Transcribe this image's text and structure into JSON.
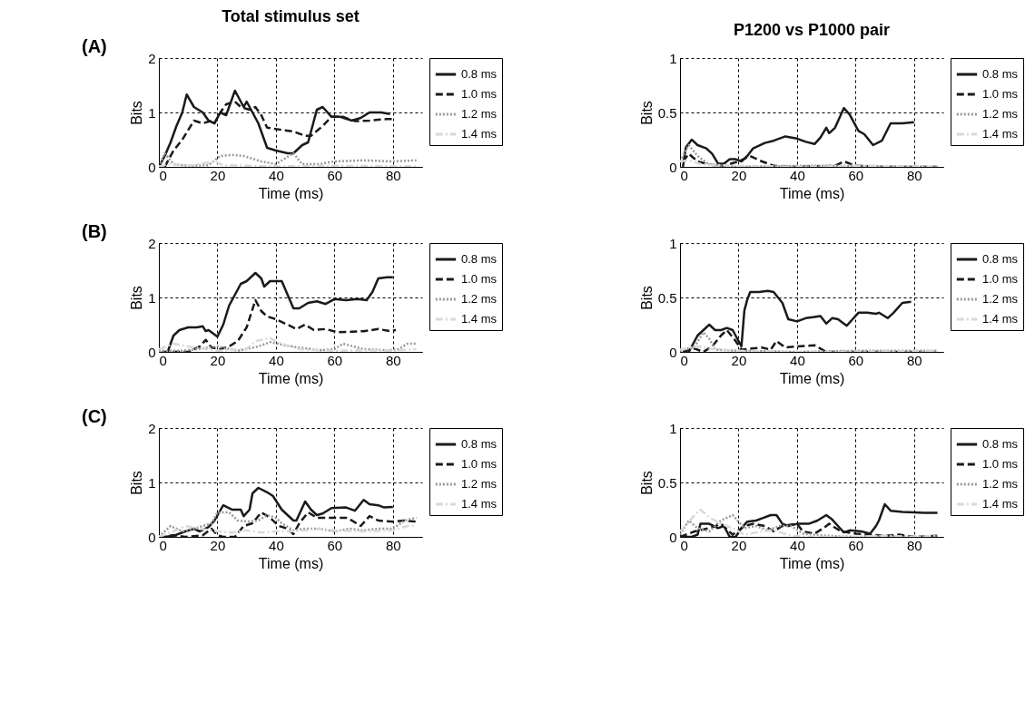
{
  "chart_data": [
    {
      "type": "line",
      "title": "Total stimulus set",
      "annotations": [
        "(A)"
      ],
      "xlabel": "Time (ms)",
      "ylabel": "Bits",
      "xlim": [
        0,
        90
      ],
      "xticks": [
        0,
        20,
        40,
        60,
        80
      ],
      "ylim": [
        0,
        2
      ],
      "yticks": [
        0,
        1,
        2
      ],
      "grid": true,
      "legend": "top right",
      "series": [
        {
          "name": "0.8 ms",
          "color": "#1a1a1a",
          "line_style": "solid",
          "x": [
            0,
            2,
            4,
            6,
            8,
            9.5,
            12,
            15,
            17,
            19,
            21,
            23,
            26,
            29,
            30,
            32,
            34,
            37,
            40,
            44,
            46,
            49,
            51,
            54,
            56,
            59,
            62,
            66,
            69,
            72,
            76,
            79
          ],
          "values": [
            0,
            0.2,
            0.45,
            0.75,
            1.0,
            1.33,
            1.1,
            1.0,
            0.85,
            0.8,
            1.0,
            0.95,
            1.4,
            1.1,
            1.2,
            1.0,
            0.8,
            0.35,
            0.3,
            0.25,
            0.25,
            0.4,
            0.45,
            1.05,
            1.1,
            0.92,
            0.92,
            0.85,
            0.9,
            1.0,
            1.0,
            0.97
          ]
        },
        {
          "name": "1.0 ms",
          "color": "#1a1a1a",
          "line_style": "dashed",
          "x": [
            2,
            5,
            8,
            12,
            15,
            18,
            19,
            21,
            23,
            26,
            28,
            31,
            33,
            35,
            37,
            42,
            46,
            50,
            52,
            56,
            59,
            63,
            67,
            72,
            78,
            80
          ],
          "values": [
            0,
            0.3,
            0.5,
            0.85,
            0.8,
            0.85,
            0.8,
            1.0,
            1.15,
            1.2,
            1.1,
            1.05,
            1.1,
            0.95,
            0.72,
            0.68,
            0.65,
            0.57,
            0.57,
            0.75,
            0.92,
            0.92,
            0.84,
            0.85,
            0.88,
            0.88
          ]
        },
        {
          "name": "1.2 ms",
          "color": "#999999",
          "line_style": "dotted",
          "x": [
            0,
            2,
            5,
            10,
            17,
            21,
            25,
            29,
            35,
            40,
            43,
            46,
            49,
            55,
            60,
            70,
            80,
            88
          ],
          "values": [
            0,
            0.25,
            0.05,
            0.02,
            0.03,
            0.2,
            0.22,
            0.2,
            0.1,
            0.05,
            0.15,
            0.25,
            0.05,
            0.05,
            0.1,
            0.12,
            0.1,
            0.12
          ]
        },
        {
          "name": "1.4 ms",
          "color": "#d9d9d9",
          "line_style": "dashdot",
          "x": [
            0,
            3,
            10,
            19,
            22,
            40,
            60,
            88
          ],
          "values": [
            0,
            0.05,
            0.02,
            0.1,
            0.03,
            0.01,
            0.02,
            0.01
          ]
        }
      ]
    },
    {
      "type": "line",
      "title": "P1200 vs P1000 pair",
      "xlabel": "Time (ms)",
      "ylabel": "Bits",
      "xlim": [
        0,
        90
      ],
      "xticks": [
        0,
        20,
        40,
        60,
        80
      ],
      "ylim": [
        0,
        1
      ],
      "yticks": [
        0,
        0.5,
        1
      ],
      "grid": true,
      "legend": "top right",
      "series": [
        {
          "name": "0.8 ms",
          "color": "#1a1a1a",
          "line_style": "solid",
          "x": [
            1,
            2,
            4,
            6,
            9,
            11,
            13,
            15,
            17,
            19,
            21,
            23,
            25,
            29,
            32,
            36,
            40,
            43,
            46,
            48,
            50,
            51,
            53,
            56,
            58,
            61,
            63,
            66,
            69,
            72,
            76,
            80
          ],
          "values": [
            0,
            0.18,
            0.25,
            0.2,
            0.17,
            0.12,
            0.03,
            0.03,
            0.07,
            0.07,
            0.05,
            0.1,
            0.17,
            0.22,
            0.24,
            0.28,
            0.26,
            0.23,
            0.21,
            0.27,
            0.36,
            0.31,
            0.36,
            0.54,
            0.48,
            0.33,
            0.3,
            0.2,
            0.24,
            0.4,
            0.4,
            0.41
          ]
        },
        {
          "name": "1.0 ms",
          "color": "#1a1a1a",
          "line_style": "dashed",
          "x": [
            1,
            3,
            6,
            10,
            15,
            20,
            24,
            28,
            32,
            40,
            53,
            56,
            60,
            70,
            88
          ],
          "values": [
            0.05,
            0.12,
            0.05,
            0.02,
            0.01,
            0.05,
            0.1,
            0.05,
            0.01,
            0,
            0.01,
            0.05,
            0.01,
            0,
            0
          ]
        },
        {
          "name": "1.2 ms",
          "color": "#999999",
          "line_style": "dotted",
          "x": [
            0,
            3,
            6,
            10,
            20,
            40,
            60,
            88
          ],
          "values": [
            0.05,
            0.2,
            0.1,
            0.02,
            0,
            0.01,
            0.01,
            0
          ]
        },
        {
          "name": "1.4 ms",
          "color": "#d9d9d9",
          "line_style": "dashdot",
          "x": [
            0,
            3,
            8,
            20,
            40,
            60,
            88
          ],
          "values": [
            0.05,
            0.06,
            0.02,
            0.01,
            0,
            0.01,
            0
          ]
        }
      ]
    },
    {
      "type": "line",
      "annotations": [
        "(B)"
      ],
      "xlabel": "Time (ms)",
      "ylabel": "Bits",
      "xlim": [
        0,
        90
      ],
      "xticks": [
        0,
        20,
        40,
        60,
        80
      ],
      "ylim": [
        0,
        2
      ],
      "yticks": [
        0,
        1,
        2
      ],
      "grid": true,
      "legend": "top right",
      "series": [
        {
          "name": "0.8 ms",
          "color": "#1a1a1a",
          "line_style": "solid",
          "x": [
            3,
            5,
            7,
            10,
            13,
            15,
            16,
            17,
            20,
            22,
            24,
            26,
            28,
            30,
            33,
            35,
            36,
            38,
            42,
            44,
            46,
            48,
            51,
            54,
            57,
            60,
            64,
            68,
            71,
            73,
            75,
            78,
            80
          ],
          "values": [
            0,
            0.3,
            0.4,
            0.45,
            0.45,
            0.47,
            0.38,
            0.4,
            0.28,
            0.5,
            0.85,
            1.05,
            1.25,
            1.3,
            1.45,
            1.35,
            1.2,
            1.3,
            1.3,
            1.05,
            0.8,
            0.8,
            0.9,
            0.93,
            0.88,
            0.97,
            0.95,
            0.97,
            0.95,
            1.1,
            1.35,
            1.37,
            1.37
          ]
        },
        {
          "name": "1.0 ms",
          "color": "#1a1a1a",
          "line_style": "dashed",
          "x": [
            1,
            10,
            14,
            16,
            18,
            21,
            24,
            27,
            30,
            33,
            35,
            37,
            40,
            44,
            47,
            50,
            53,
            57,
            61,
            66,
            70,
            75,
            79,
            81
          ],
          "values": [
            0,
            0,
            0.1,
            0.22,
            0.08,
            0.05,
            0.1,
            0.2,
            0.45,
            0.95,
            0.75,
            0.65,
            0.6,
            0.5,
            0.42,
            0.5,
            0.4,
            0.42,
            0.36,
            0.37,
            0.38,
            0.42,
            0.38,
            0.4
          ]
        },
        {
          "name": "1.2 ms",
          "color": "#999999",
          "line_style": "dotted",
          "x": [
            0,
            8,
            13,
            20,
            27,
            34,
            38,
            43,
            48,
            55,
            60,
            63,
            70,
            78,
            82,
            85,
            88
          ],
          "values": [
            0.02,
            0.02,
            0.05,
            0.1,
            0.02,
            0.1,
            0.18,
            0.12,
            0.08,
            0.03,
            0.05,
            0.15,
            0.05,
            0.03,
            0.05,
            0.15,
            0.15
          ]
        },
        {
          "name": "1.4 ms",
          "color": "#d9d9d9",
          "line_style": "dashdot",
          "x": [
            0,
            5,
            10,
            20,
            30,
            33,
            38,
            42,
            48,
            60,
            70,
            80,
            88
          ],
          "values": [
            0.05,
            0.15,
            0.1,
            0.02,
            0.05,
            0.2,
            0.25,
            0.15,
            0.05,
            0.02,
            0.03,
            0.02,
            0.05
          ]
        }
      ]
    },
    {
      "type": "line",
      "xlabel": "Time (ms)",
      "ylabel": "Bits",
      "xlim": [
        0,
        90
      ],
      "xticks": [
        0,
        20,
        40,
        60,
        80
      ],
      "ylim": [
        0,
        1
      ],
      "yticks": [
        0,
        0.5,
        1
      ],
      "grid": true,
      "legend": "top right",
      "series": [
        {
          "name": "0.8 ms",
          "color": "#1a1a1a",
          "line_style": "solid",
          "x": [
            3,
            4,
            6,
            8,
            10,
            12,
            14,
            16,
            18,
            19,
            20,
            21,
            22,
            23,
            24,
            27,
            30,
            32,
            35,
            37,
            40,
            43,
            46,
            48,
            50,
            52,
            54,
            57,
            59,
            61,
            64,
            67,
            68,
            71,
            73,
            76,
            79
          ],
          "values": [
            0,
            0.05,
            0.15,
            0.2,
            0.25,
            0.2,
            0.2,
            0.22,
            0.2,
            0.15,
            0.1,
            0.05,
            0.38,
            0.48,
            0.55,
            0.55,
            0.56,
            0.55,
            0.45,
            0.3,
            0.28,
            0.31,
            0.32,
            0.33,
            0.26,
            0.31,
            0.3,
            0.24,
            0.3,
            0.36,
            0.36,
            0.35,
            0.36,
            0.31,
            0.36,
            0.45,
            0.46
          ]
        },
        {
          "name": "1.0 ms",
          "color": "#1a1a1a",
          "line_style": "dashed",
          "x": [
            1,
            5,
            8,
            11,
            14,
            16,
            19,
            21,
            24,
            28,
            31,
            33,
            36,
            40,
            46,
            48,
            50,
            88
          ],
          "values": [
            0,
            0.03,
            0,
            0.05,
            0.15,
            0.2,
            0.1,
            0.02,
            0.03,
            0.04,
            0.02,
            0.1,
            0.04,
            0.05,
            0.06,
            0.03,
            0,
            0
          ]
        },
        {
          "name": "1.2 ms",
          "color": "#999999",
          "line_style": "dotted",
          "x": [
            0,
            5,
            8,
            10,
            12,
            20,
            40,
            60,
            88
          ],
          "values": [
            0.01,
            0.05,
            0.18,
            0.12,
            0.02,
            0.01,
            0,
            0.01,
            0.01
          ]
        },
        {
          "name": "1.4 ms",
          "color": "#d9d9d9",
          "line_style": "dashdot",
          "x": [
            0,
            6,
            10,
            20,
            40,
            60,
            88
          ],
          "values": [
            0.02,
            0.05,
            0.03,
            0.01,
            0,
            0,
            0.01
          ]
        }
      ]
    },
    {
      "type": "line",
      "annotations": [
        "(C)"
      ],
      "xlabel": "Time (ms)",
      "ylabel": "Bits",
      "xlim": [
        0,
        90
      ],
      "xticks": [
        0,
        20,
        40,
        60,
        80
      ],
      "ylim": [
        0,
        2
      ],
      "yticks": [
        0,
        1,
        2
      ],
      "grid": true,
      "legend": "top right",
      "series": [
        {
          "name": "0.8 ms",
          "color": "#1a1a1a",
          "line_style": "solid",
          "x": [
            2,
            5,
            9,
            12,
            14,
            17,
            19,
            22,
            25,
            28,
            29,
            31,
            32,
            34,
            37,
            39,
            42,
            44,
            46,
            47,
            50,
            52,
            54,
            56,
            59,
            64,
            67,
            70,
            72,
            75,
            77,
            80
          ],
          "values": [
            0,
            0.02,
            0.1,
            0.15,
            0.1,
            0.18,
            0.3,
            0.58,
            0.5,
            0.5,
            0.38,
            0.5,
            0.8,
            0.9,
            0.82,
            0.75,
            0.5,
            0.4,
            0.3,
            0.3,
            0.65,
            0.5,
            0.4,
            0.43,
            0.53,
            0.54,
            0.48,
            0.68,
            0.6,
            0.58,
            0.54,
            0.55
          ]
        },
        {
          "name": "1.0 ms",
          "color": "#1a1a1a",
          "line_style": "dashed",
          "x": [
            0,
            5,
            9,
            15,
            18,
            20,
            22,
            26,
            29,
            32,
            35,
            38,
            41,
            44,
            46,
            48,
            51,
            54,
            58,
            64,
            66,
            69,
            72,
            75,
            80,
            84,
            88
          ],
          "values": [
            0,
            0.03,
            0,
            0.03,
            0.15,
            0.03,
            0,
            0,
            0.2,
            0.25,
            0.45,
            0.35,
            0.2,
            0.15,
            0.05,
            0.25,
            0.45,
            0.35,
            0.35,
            0.35,
            0.3,
            0.2,
            0.38,
            0.3,
            0.28,
            0.3,
            0.28
          ]
        },
        {
          "name": "1.2 ms",
          "color": "#999999",
          "line_style": "dotted",
          "x": [
            0,
            4,
            8,
            12,
            18,
            20,
            24,
            27,
            30,
            34,
            37,
            40,
            42,
            46,
            50,
            55,
            60,
            65,
            70,
            75,
            80,
            84,
            88
          ],
          "values": [
            0,
            0.2,
            0.1,
            0.15,
            0.25,
            0.45,
            0.45,
            0.3,
            0.28,
            0.3,
            0.4,
            0.35,
            0.25,
            0.12,
            0.15,
            0.15,
            0.1,
            0.15,
            0.12,
            0.15,
            0.15,
            0.3,
            0.35
          ]
        },
        {
          "name": "1.4 ms",
          "color": "#d9d9d9",
          "line_style": "dashdot",
          "x": [
            0,
            5,
            9,
            14,
            20,
            25,
            30,
            35,
            40,
            45,
            50,
            55,
            60,
            70,
            80,
            85,
            88
          ],
          "values": [
            0,
            0.1,
            0.2,
            0.15,
            0.1,
            0.08,
            0.12,
            0.08,
            0.1,
            0.1,
            0.12,
            0.15,
            0.12,
            0.1,
            0.12,
            0.2,
            0.2
          ]
        }
      ]
    },
    {
      "type": "line",
      "xlabel": "Time (ms)",
      "ylabel": "Bits",
      "xlim": [
        0,
        90
      ],
      "xticks": [
        0,
        20,
        40,
        60,
        80
      ],
      "ylim": [
        0,
        1
      ],
      "yticks": [
        0,
        0.5,
        1
      ],
      "grid": true,
      "legend": "top right",
      "series": [
        {
          "name": "0.8 ms",
          "color": "#1a1a1a",
          "line_style": "solid",
          "x": [
            0,
            4,
            6,
            7,
            10,
            13,
            15,
            17,
            19,
            21,
            23,
            26,
            28,
            31,
            33,
            35,
            37,
            40,
            44,
            47,
            50,
            52,
            54,
            56,
            58,
            62,
            65,
            67,
            68,
            70,
            72,
            76,
            84,
            88
          ],
          "values": [
            0,
            0,
            0.02,
            0.12,
            0.12,
            0.08,
            0.1,
            0,
            0,
            0.08,
            0.14,
            0.15,
            0.17,
            0.2,
            0.2,
            0.12,
            0.1,
            0.12,
            0.12,
            0.15,
            0.2,
            0.16,
            0.1,
            0.04,
            0.06,
            0.05,
            0.03,
            0.1,
            0.15,
            0.3,
            0.24,
            0.23,
            0.22,
            0.22
          ]
        },
        {
          "name": "1.0 ms",
          "color": "#1a1a1a",
          "line_style": "dashed",
          "x": [
            0,
            5,
            10,
            14,
            18,
            22,
            25,
            29,
            32,
            35,
            40,
            42,
            46,
            49,
            51,
            55,
            60,
            70,
            75,
            80,
            88
          ],
          "values": [
            0,
            0.05,
            0.08,
            0.12,
            0.02,
            0.1,
            0.12,
            0.1,
            0.05,
            0.1,
            0.12,
            0.05,
            0.03,
            0.08,
            0.12,
            0.05,
            0.03,
            0.01,
            0.02,
            0,
            0.01
          ]
        },
        {
          "name": "1.2 ms",
          "color": "#999999",
          "line_style": "dotted",
          "x": [
            0,
            3,
            6,
            10,
            14,
            18,
            22,
            26,
            30,
            34,
            38,
            42,
            50,
            60,
            70,
            80,
            88
          ],
          "values": [
            0.02,
            0.15,
            0.08,
            0.05,
            0.15,
            0.2,
            0.08,
            0.1,
            0.06,
            0.1,
            0.1,
            0.03,
            0.01,
            0,
            0.01,
            0,
            0.01
          ]
        },
        {
          "name": "1.4 ms",
          "color": "#d9d9d9",
          "line_style": "dashdot",
          "x": [
            0,
            5,
            7,
            10,
            14,
            18,
            22,
            28,
            32,
            38,
            45,
            60,
            70,
            80,
            88
          ],
          "values": [
            0.05,
            0.2,
            0.25,
            0.18,
            0.12,
            0.08,
            0.02,
            0.05,
            0.06,
            0.01,
            0,
            0,
            0.01,
            0,
            0.01
          ]
        }
      ]
    }
  ]
}
